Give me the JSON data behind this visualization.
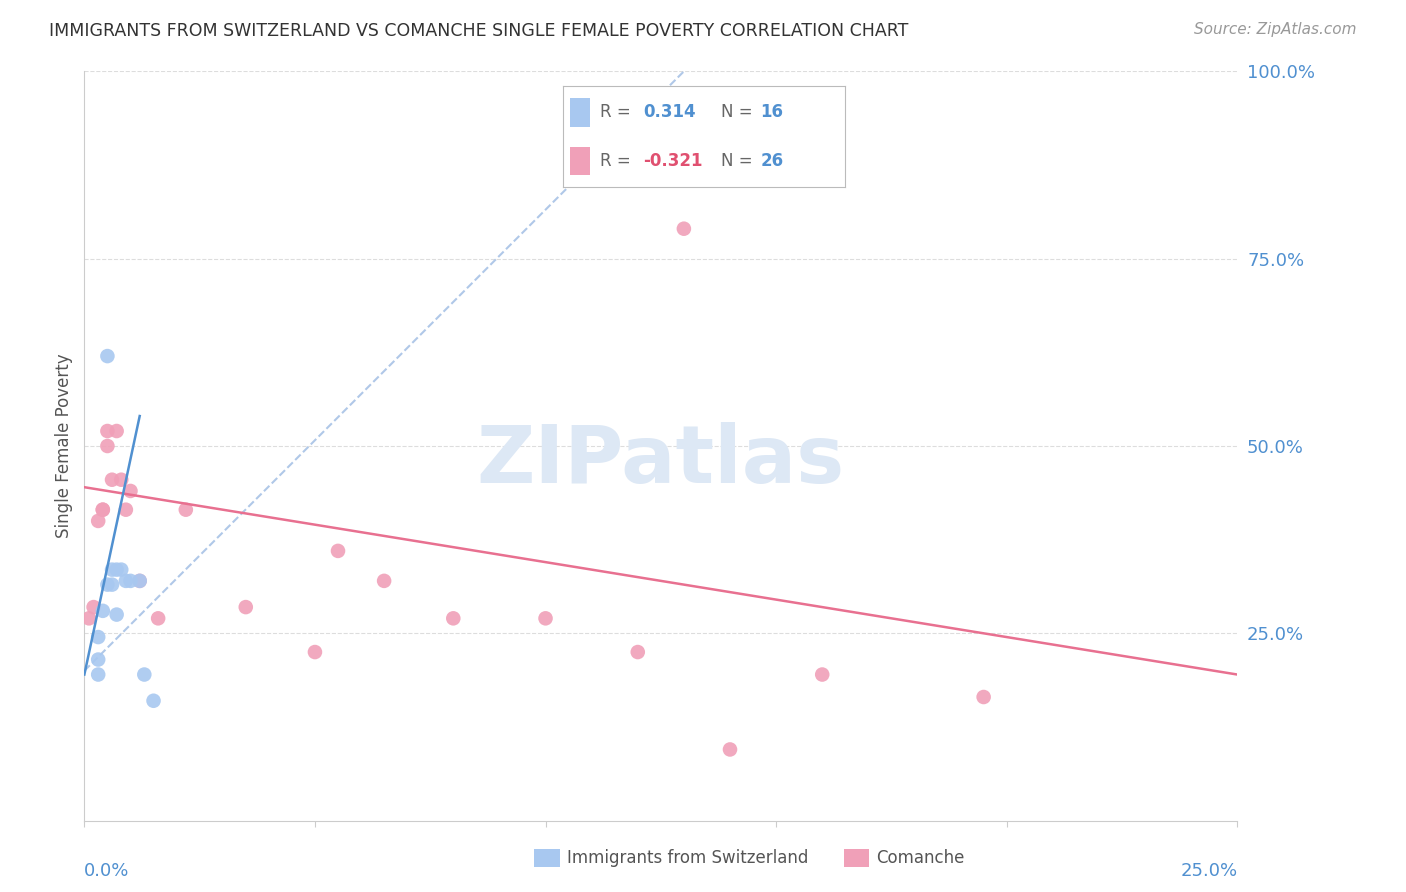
{
  "title": "IMMIGRANTS FROM SWITZERLAND VS COMANCHE SINGLE FEMALE POVERTY CORRELATION CHART",
  "source": "Source: ZipAtlas.com",
  "ylabel": "Single Female Poverty",
  "legend_label1": "Immigrants from Switzerland",
  "legend_label2": "Comanche",
  "r1": "0.314",
  "n1": "16",
  "r2": "-0.321",
  "n2": "26",
  "xlim": [
    0.0,
    0.25
  ],
  "ylim": [
    0.0,
    1.0
  ],
  "yticks": [
    0.0,
    0.25,
    0.5,
    0.75,
    1.0
  ],
  "ytick_labels": [
    "",
    "25.0%",
    "50.0%",
    "75.0%",
    "100.0%"
  ],
  "xtick_labels": [
    "0.0%",
    "",
    "",
    "",
    "",
    "25.0%"
  ],
  "xticks": [
    0.0,
    0.05,
    0.1,
    0.15,
    0.2,
    0.25
  ],
  "color_blue": "#a8c8f0",
  "color_pink": "#f0a0b8",
  "color_blue_line": "#b0c8e8",
  "color_pink_line": "#e87090",
  "color_blue_text": "#5090d0",
  "color_pink_text": "#e05070",
  "watermark_color": "#dde8f5",
  "background_color": "#ffffff",
  "grid_color": "#dddddd",
  "spine_color": "#cccccc",
  "blue_points_x": [
    0.003,
    0.003,
    0.003,
    0.004,
    0.005,
    0.006,
    0.006,
    0.007,
    0.007,
    0.008,
    0.009,
    0.01,
    0.012,
    0.013,
    0.015,
    0.005
  ],
  "blue_points_y": [
    0.195,
    0.215,
    0.245,
    0.28,
    0.315,
    0.315,
    0.335,
    0.335,
    0.275,
    0.335,
    0.32,
    0.32,
    0.32,
    0.195,
    0.16,
    0.62
  ],
  "pink_points_x": [
    0.001,
    0.002,
    0.003,
    0.004,
    0.004,
    0.005,
    0.005,
    0.006,
    0.007,
    0.008,
    0.009,
    0.01,
    0.012,
    0.016,
    0.022,
    0.035,
    0.05,
    0.055,
    0.065,
    0.08,
    0.1,
    0.12,
    0.14,
    0.16,
    0.195,
    0.13
  ],
  "pink_points_y": [
    0.27,
    0.285,
    0.4,
    0.415,
    0.415,
    0.5,
    0.52,
    0.455,
    0.52,
    0.455,
    0.415,
    0.44,
    0.32,
    0.27,
    0.415,
    0.285,
    0.225,
    0.36,
    0.32,
    0.27,
    0.27,
    0.225,
    0.095,
    0.195,
    0.165,
    0.79
  ],
  "blue_line_x": [
    0.0,
    0.012
  ],
  "blue_line_y": [
    0.195,
    0.54
  ],
  "pink_line_x": [
    0.0,
    0.25
  ],
  "pink_line_y": [
    0.445,
    0.195
  ],
  "blue_dashed_line_x": [
    0.0,
    0.13
  ],
  "blue_dashed_line_y": [
    0.2,
    1.0
  ]
}
